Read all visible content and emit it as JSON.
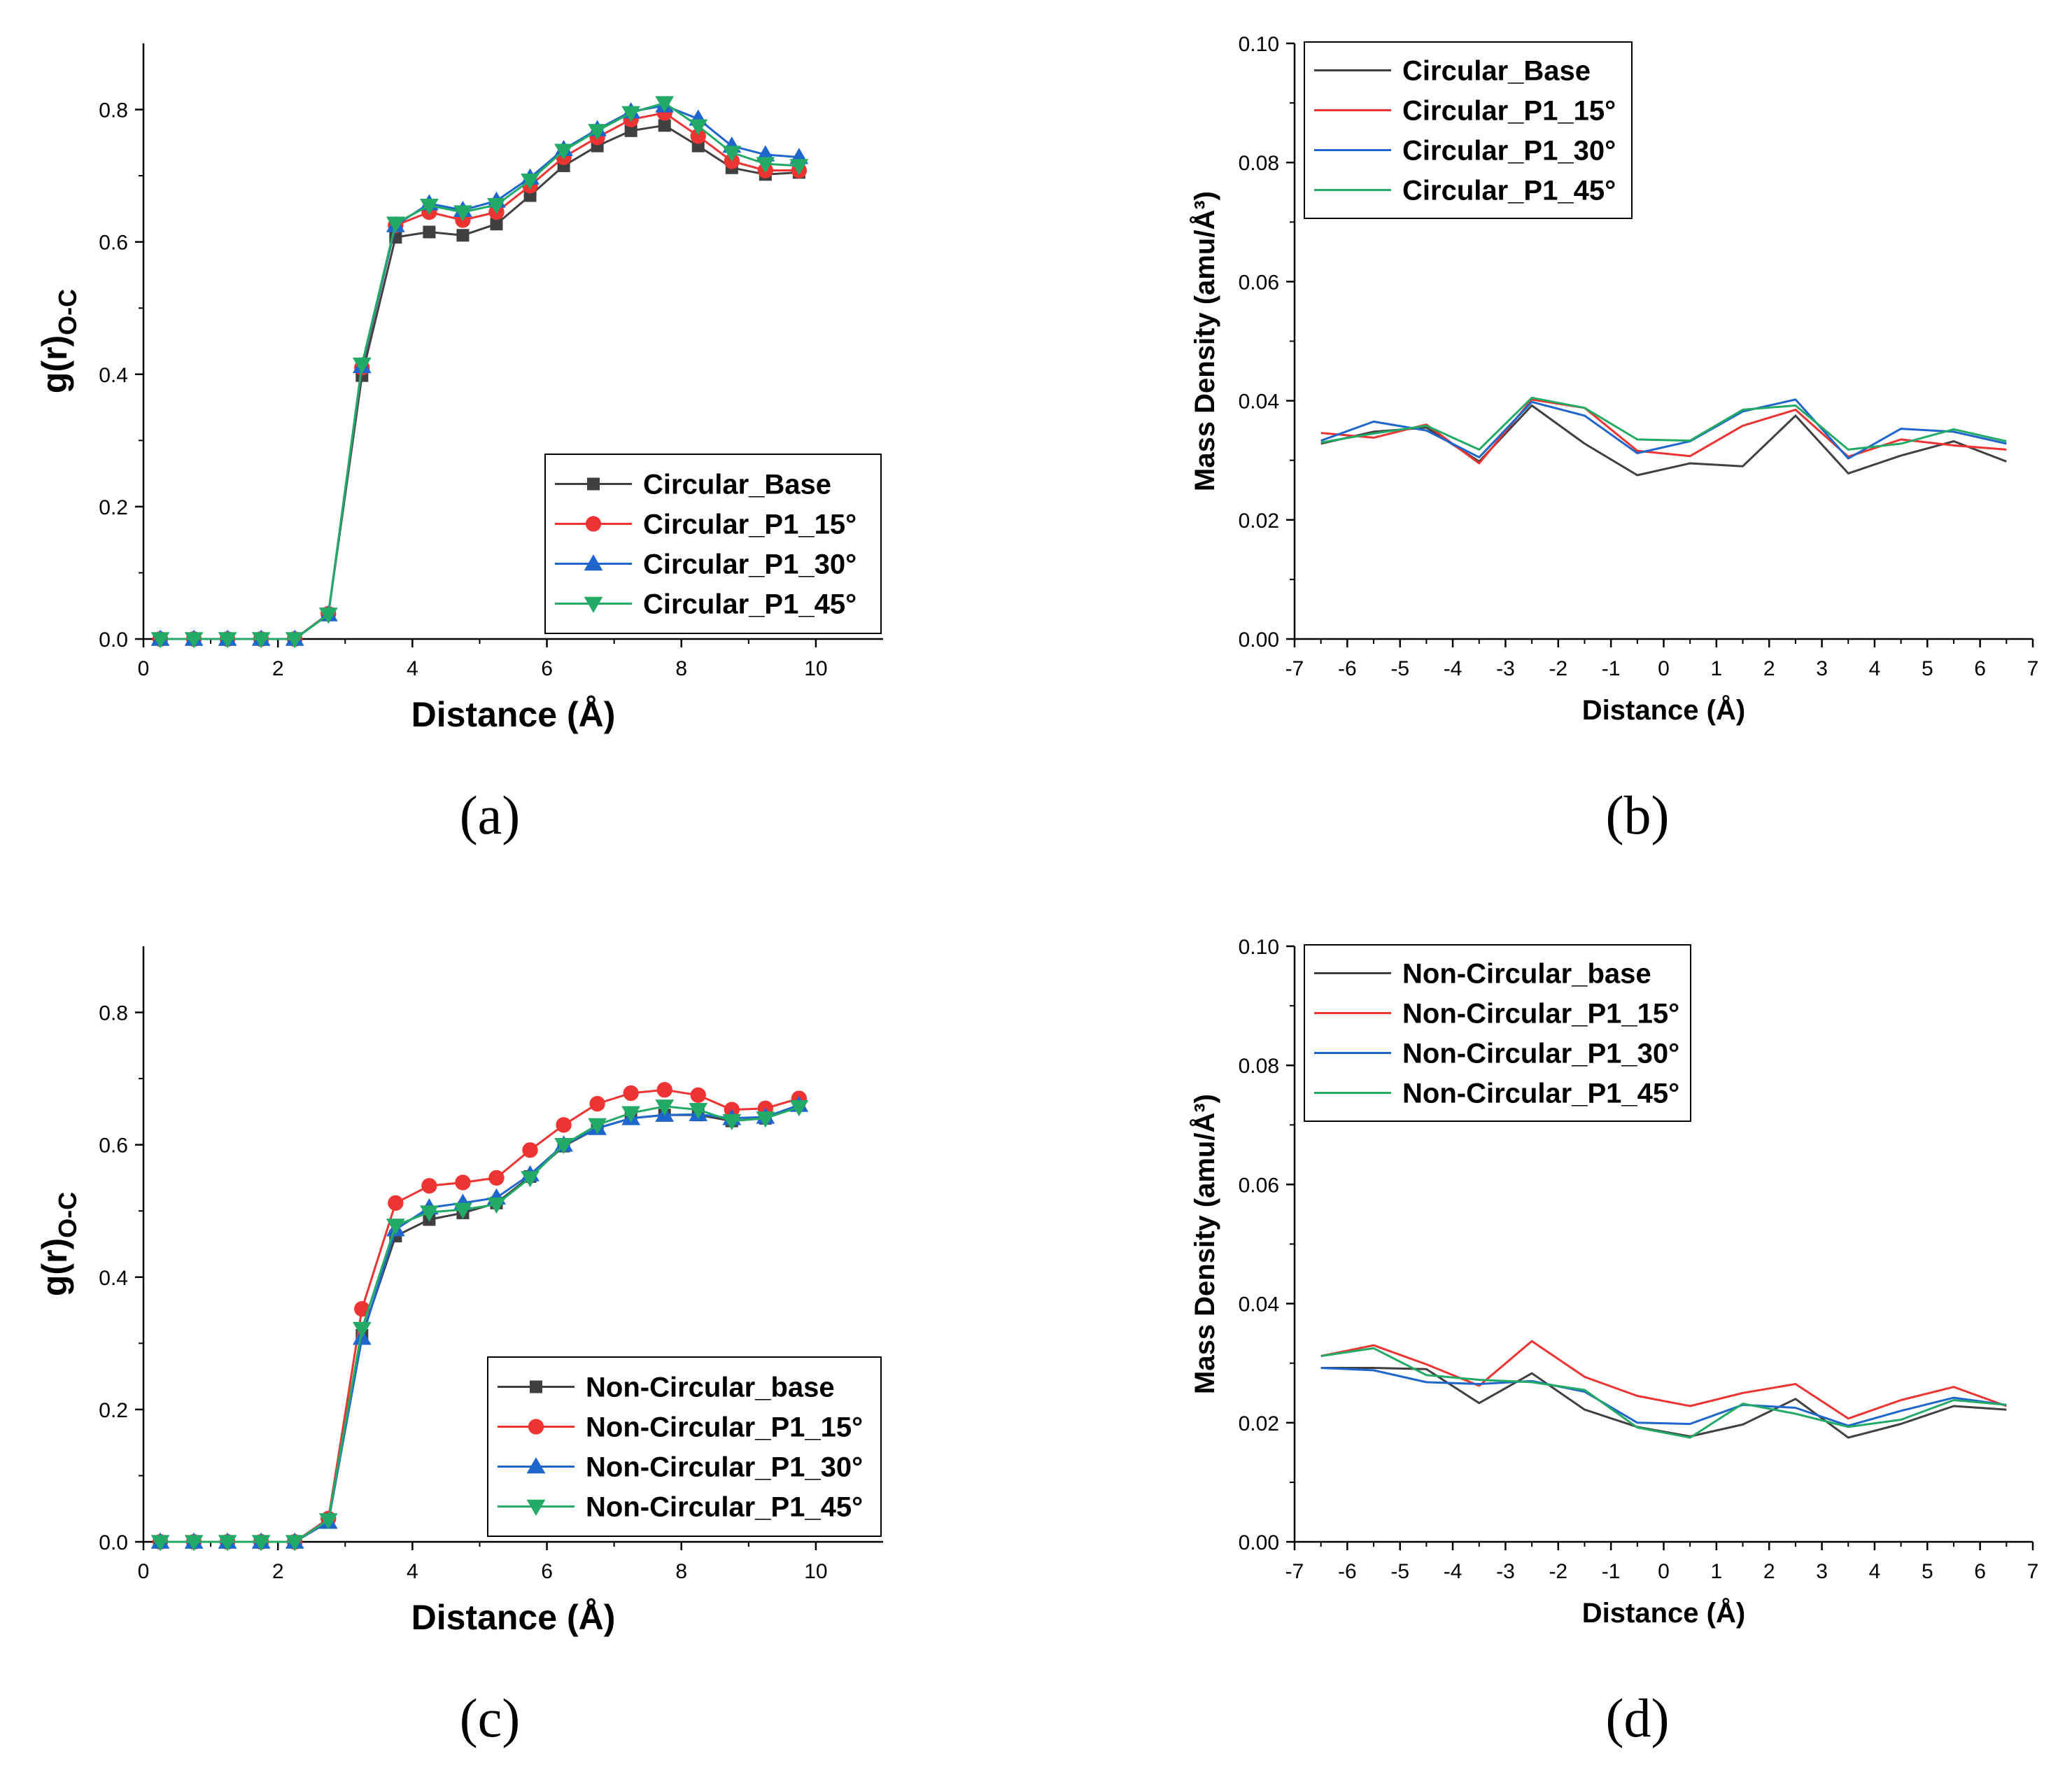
{
  "colors": {
    "base": "#404040",
    "p15": "#ee3333",
    "p30": "#1f66cc",
    "p45": "#22aa66"
  },
  "captions": {
    "a": "(a)",
    "b": "(b)",
    "c": "(c)",
    "d": "(d)"
  },
  "chart_data": [
    {
      "id": "a",
      "type": "line",
      "markers": true,
      "xlabel": "Distance (Å)",
      "ylabel": "g(r)",
      "ylabel_sub": "O-C",
      "xlim": [
        0,
        11
      ],
      "ylim": [
        0,
        0.9
      ],
      "xticks": [
        "0",
        "2",
        "4",
        "6",
        "8",
        "10"
      ],
      "yticks": [
        "0.0",
        "0.2",
        "0.4",
        "0.6",
        "0.8"
      ],
      "legend_position": "bottom-right",
      "x": [
        0.25,
        0.75,
        1.25,
        1.75,
        2.25,
        2.75,
        3.25,
        3.75,
        4.25,
        4.75,
        5.25,
        5.75,
        6.25,
        6.75,
        7.25,
        7.75,
        8.25,
        8.75,
        9.25,
        9.75
      ],
      "series": [
        {
          "name": "Circular_Base",
          "color_key": "base",
          "marker": "square",
          "values": [
            0,
            0,
            0,
            0,
            0,
            0.038,
            0.398,
            0.607,
            0.615,
            0.61,
            0.627,
            0.67,
            0.715,
            0.745,
            0.768,
            0.776,
            0.745,
            0.712,
            0.702,
            0.705
          ]
        },
        {
          "name": "Circular_P1_15°",
          "color_key": "p15",
          "marker": "circle",
          "values": [
            0,
            0,
            0,
            0,
            0,
            0.038,
            0.41,
            0.625,
            0.645,
            0.633,
            0.645,
            0.685,
            0.728,
            0.758,
            0.785,
            0.795,
            0.76,
            0.722,
            0.708,
            0.708
          ]
        },
        {
          "name": "Circular_P1_30°",
          "color_key": "p30",
          "marker": "triangle-up",
          "values": [
            0,
            0,
            0,
            0,
            0,
            0.037,
            0.412,
            0.625,
            0.658,
            0.648,
            0.662,
            0.697,
            0.74,
            0.77,
            0.797,
            0.806,
            0.786,
            0.745,
            0.732,
            0.728
          ]
        },
        {
          "name": "Circular_P1_45°",
          "color_key": "p45",
          "marker": "triangle-down",
          "values": [
            0,
            0,
            0,
            0,
            0,
            0.037,
            0.415,
            0.628,
            0.655,
            0.645,
            0.656,
            0.693,
            0.738,
            0.768,
            0.795,
            0.81,
            0.775,
            0.735,
            0.718,
            0.715
          ]
        }
      ]
    },
    {
      "id": "b",
      "type": "line",
      "markers": false,
      "xlabel": "Distance (Å)",
      "ylabel": "Mass Density (amu/Å³)",
      "ylabel_sub": "",
      "xlim": [
        -7,
        7
      ],
      "ylim": [
        0,
        0.1
      ],
      "xticks": [
        "-7",
        "-6",
        "-5",
        "-4",
        "-3",
        "-2",
        "-1",
        "0",
        "1",
        "2",
        "3",
        "4",
        "5",
        "6",
        "7"
      ],
      "yticks": [
        "0.00",
        "0.02",
        "0.04",
        "0.06",
        "0.08",
        "0.10"
      ],
      "legend_position": "top-left",
      "x": [
        -6.5,
        -5.5,
        -4.5,
        -3.5,
        -2.5,
        -1.5,
        -0.5,
        0.5,
        1.5,
        2.5,
        3.5,
        4.5,
        5.5,
        6.5
      ],
      "series": [
        {
          "name": "Circular_Base",
          "color_key": "base",
          "values": [
            0.0328,
            0.0348,
            0.0355,
            0.0298,
            0.0392,
            0.0328,
            0.0275,
            0.0295,
            0.029,
            0.0375,
            0.0278,
            0.0308,
            0.0332,
            0.0298
          ]
        },
        {
          "name": "Circular_P1_15°",
          "color_key": "p15",
          "values": [
            0.0346,
            0.0338,
            0.036,
            0.0295,
            0.0402,
            0.0388,
            0.0316,
            0.0307,
            0.0358,
            0.0385,
            0.0306,
            0.0335,
            0.0325,
            0.0318
          ]
        },
        {
          "name": "Circular_P1_30°",
          "color_key": "p30",
          "values": [
            0.0333,
            0.0365,
            0.035,
            0.0305,
            0.0398,
            0.0375,
            0.0312,
            0.0332,
            0.0382,
            0.0402,
            0.0303,
            0.0353,
            0.0348,
            0.0328
          ]
        },
        {
          "name": "Circular_P1_45°",
          "color_key": "p45",
          "values": [
            0.033,
            0.0345,
            0.0358,
            0.0318,
            0.0405,
            0.0388,
            0.0335,
            0.0333,
            0.0385,
            0.0392,
            0.0318,
            0.0328,
            0.0352,
            0.0332
          ]
        }
      ]
    },
    {
      "id": "c",
      "type": "line",
      "markers": true,
      "xlabel": "Distance (Å)",
      "ylabel": "g(r)",
      "ylabel_sub": "O-C",
      "xlim": [
        0,
        11
      ],
      "ylim": [
        0,
        0.9
      ],
      "xticks": [
        "0",
        "2",
        "4",
        "6",
        "8",
        "10"
      ],
      "yticks": [
        "0.0",
        "0.2",
        "0.4",
        "0.6",
        "0.8"
      ],
      "legend_position": "bottom-right",
      "x": [
        0.25,
        0.75,
        1.25,
        1.75,
        2.25,
        2.75,
        3.25,
        3.75,
        4.25,
        4.75,
        5.25,
        5.75,
        6.25,
        6.75,
        7.25,
        7.75,
        8.25,
        8.75,
        9.25,
        9.75
      ],
      "series": [
        {
          "name": "Non-Circular_base",
          "color_key": "base",
          "marker": "square",
          "values": [
            0,
            0,
            0,
            0,
            0,
            0.032,
            0.312,
            0.462,
            0.487,
            0.497,
            0.512,
            0.552,
            0.598,
            0.625,
            0.64,
            0.645,
            0.645,
            0.636,
            0.64,
            0.66
          ]
        },
        {
          "name": "Non-Circular_P1_15°",
          "color_key": "p15",
          "marker": "circle",
          "values": [
            0,
            0,
            0,
            0,
            0,
            0.035,
            0.352,
            0.512,
            0.538,
            0.543,
            0.55,
            0.592,
            0.63,
            0.662,
            0.678,
            0.683,
            0.675,
            0.653,
            0.655,
            0.67
          ]
        },
        {
          "name": "Non-Circular_P1_30°",
          "color_key": "p30",
          "marker": "triangle-up",
          "values": [
            0,
            0,
            0,
            0,
            0,
            0.03,
            0.308,
            0.472,
            0.505,
            0.512,
            0.52,
            0.555,
            0.6,
            0.625,
            0.64,
            0.645,
            0.646,
            0.64,
            0.642,
            0.66
          ]
        },
        {
          "name": "Non-Circular_P1_45°",
          "color_key": "p45",
          "marker": "triangle-down",
          "values": [
            0,
            0,
            0,
            0,
            0,
            0.033,
            0.322,
            0.478,
            0.498,
            0.502,
            0.51,
            0.55,
            0.6,
            0.63,
            0.648,
            0.658,
            0.653,
            0.636,
            0.64,
            0.657
          ]
        }
      ]
    },
    {
      "id": "d",
      "type": "line",
      "markers": false,
      "xlabel": "Distance (Å)",
      "ylabel": "Mass Density (amu/Å³)",
      "ylabel_sub": "",
      "xlim": [
        -7,
        7
      ],
      "ylim": [
        0,
        0.1
      ],
      "xticks": [
        "-7",
        "-6",
        "-5",
        "-4",
        "-3",
        "-2",
        "-1",
        "0",
        "1",
        "2",
        "3",
        "4",
        "5",
        "6",
        "7"
      ],
      "yticks": [
        "0.00",
        "0.02",
        "0.04",
        "0.06",
        "0.08",
        "0.10"
      ],
      "legend_position": "top-left",
      "x": [
        -6.5,
        -5.5,
        -4.5,
        -3.5,
        -2.5,
        -1.5,
        -0.5,
        0.5,
        1.5,
        2.5,
        3.5,
        4.5,
        5.5,
        6.5
      ],
      "series": [
        {
          "name": "Non-Circular_base",
          "color_key": "base",
          "values": [
            0.0292,
            0.0292,
            0.029,
            0.0233,
            0.0283,
            0.0222,
            0.0193,
            0.0177,
            0.0197,
            0.024,
            0.0175,
            0.0198,
            0.0228,
            0.0222
          ]
        },
        {
          "name": "Non-Circular_P1_15°",
          "color_key": "p15",
          "values": [
            0.0312,
            0.033,
            0.0298,
            0.0262,
            0.0337,
            0.0277,
            0.0245,
            0.0228,
            0.025,
            0.0265,
            0.0207,
            0.0238,
            0.026,
            0.0228
          ]
        },
        {
          "name": "Non-Circular_P1_30°",
          "color_key": "p30",
          "values": [
            0.0292,
            0.0288,
            0.0268,
            0.0265,
            0.027,
            0.0252,
            0.02,
            0.0198,
            0.023,
            0.0225,
            0.0195,
            0.022,
            0.0242,
            0.023
          ]
        },
        {
          "name": "Non-Circular_P1_45°",
          "color_key": "p45",
          "values": [
            0.0312,
            0.0325,
            0.028,
            0.0272,
            0.0268,
            0.0255,
            0.0192,
            0.0175,
            0.0232,
            0.0215,
            0.0193,
            0.0205,
            0.0238,
            0.023
          ]
        }
      ]
    }
  ]
}
